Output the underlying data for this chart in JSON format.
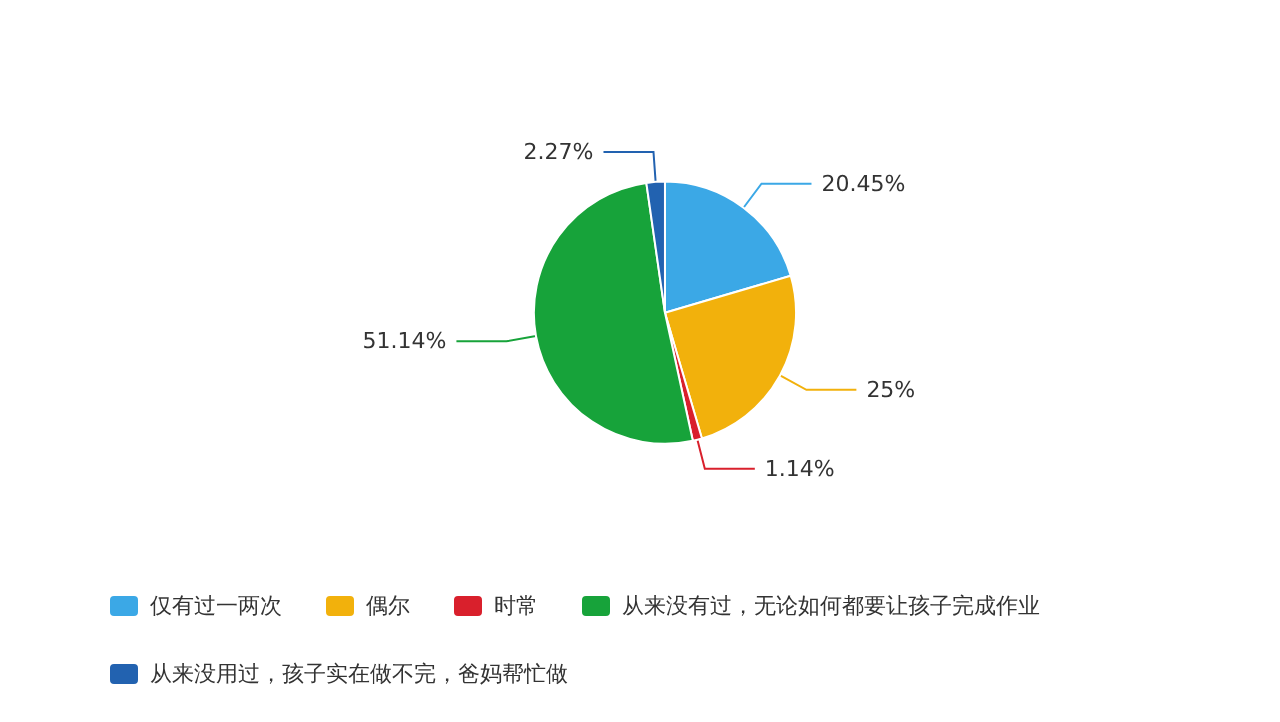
{
  "chart_data": {
    "type": "pie",
    "categories": [
      "仅有过一两次",
      "偶尔",
      "时常",
      "从来没有过，无论如何都要让孩子完成作业",
      "从来没用过，孩子实在做不完，爸妈帮忙做"
    ],
    "values": [
      20.45,
      25,
      1.14,
      51.14,
      2.27
    ],
    "value_labels": [
      "20.45%",
      "25%",
      "1.14%",
      "51.14%",
      "2.27%"
    ],
    "colors": [
      "#3ba8e6",
      "#f2b10c",
      "#d9202c",
      "#17a33a",
      "#2262b0"
    ],
    "legend": "bottom"
  }
}
